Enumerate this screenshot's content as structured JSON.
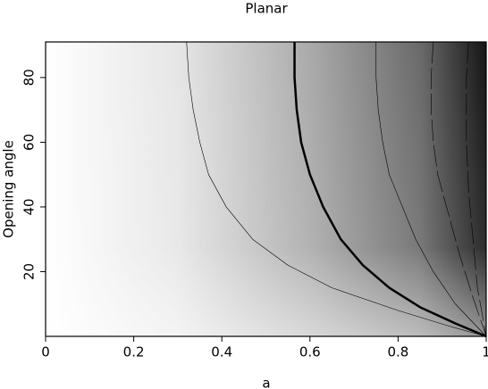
{
  "chart_data": {
    "type": "line",
    "title": "Planar",
    "x_label": "a",
    "y_label": "Opening angle",
    "xlim": [
      0,
      1
    ],
    "ylim": [
      0,
      91
    ],
    "xticks": [
      0,
      0.2,
      0.4,
      0.6,
      0.8,
      1
    ],
    "yticks": [
      20,
      40,
      60,
      80
    ],
    "series": [
      {
        "color": "#000000",
        "width": 0.6,
        "dash": false,
        "x": [
          0.32,
          0.325,
          0.335,
          0.35,
          0.37,
          0.41,
          0.47,
          0.55,
          0.65,
          0.8,
          0.92,
          1
        ],
        "values": [
          91,
          80,
          70,
          60,
          50,
          40,
          30,
          22,
          15,
          8,
          3,
          0
        ]
      },
      {
        "color": "#000000",
        "width": 2.5,
        "dash": false,
        "x": [
          0.565,
          0.565,
          0.57,
          0.58,
          0.6,
          0.63,
          0.67,
          0.72,
          0.78,
          0.85,
          0.93,
          1
        ],
        "values": [
          91,
          80,
          70,
          60,
          50,
          40,
          30,
          22,
          15,
          9,
          4,
          0
        ]
      },
      {
        "color": "#000000",
        "width": 0.6,
        "dash": false,
        "x": [
          0.75,
          0.75,
          0.755,
          0.765,
          0.78,
          0.81,
          0.84,
          0.88,
          0.93,
          1
        ],
        "values": [
          91,
          80,
          70,
          60,
          50,
          40,
          30,
          20,
          10,
          0
        ]
      },
      {
        "color": "#000000",
        "width": 0.6,
        "dash": true,
        "x": [
          0.88,
          0.875,
          0.875,
          0.88,
          0.89,
          0.91,
          0.94,
          0.97,
          1
        ],
        "values": [
          91,
          80,
          70,
          60,
          50,
          40,
          25,
          12,
          0
        ]
      },
      {
        "color": "#000000",
        "width": 0.6,
        "dash": true,
        "x": [
          0.96,
          0.955,
          0.955,
          0.96,
          0.97,
          0.98,
          1
        ],
        "values": [
          91,
          80,
          60,
          45,
          30,
          15,
          0
        ]
      }
    ]
  }
}
